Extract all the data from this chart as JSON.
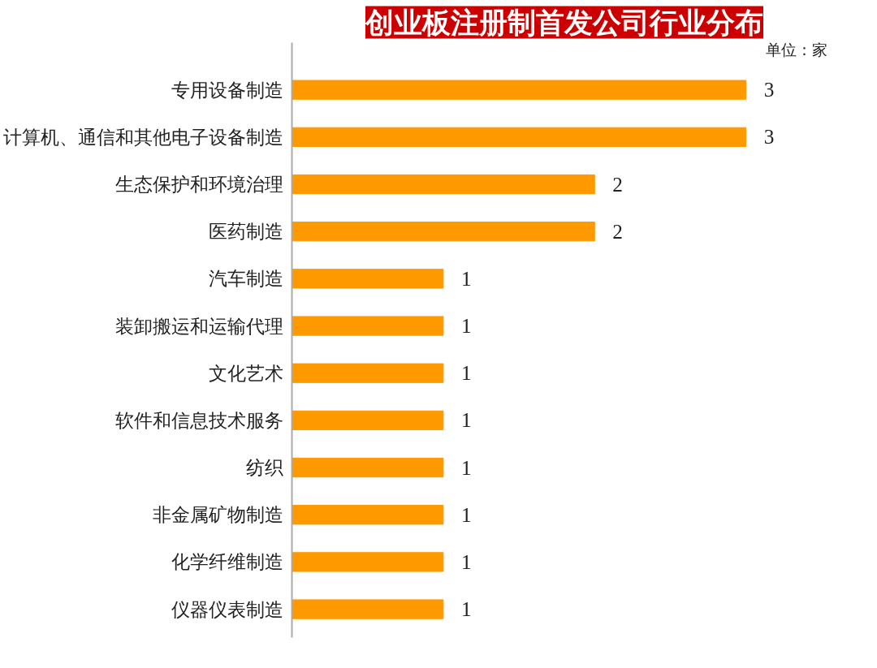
{
  "chart_data": {
    "type": "bar",
    "orientation": "horizontal",
    "title": "创业板注册制首发公司行业分布",
    "categories": [
      "专用设备制造",
      "计算机、通信和其他电子设备制造",
      "生态保护和环境治理",
      "医药制造",
      "汽车制造",
      "装卸搬运和运输代理",
      "文化艺术",
      "软件和信息技术服务",
      "纺织",
      "非金属矿物制造",
      "化学纤维制造",
      "仪器仪表制造"
    ],
    "values": [
      3,
      3,
      2,
      2,
      1,
      1,
      1,
      1,
      1,
      1,
      1,
      1
    ],
    "color": "#ff9900",
    "data_labels": true,
    "grid": false,
    "tick_labels": "y",
    "annotations": [
      "单位：家"
    ]
  }
}
